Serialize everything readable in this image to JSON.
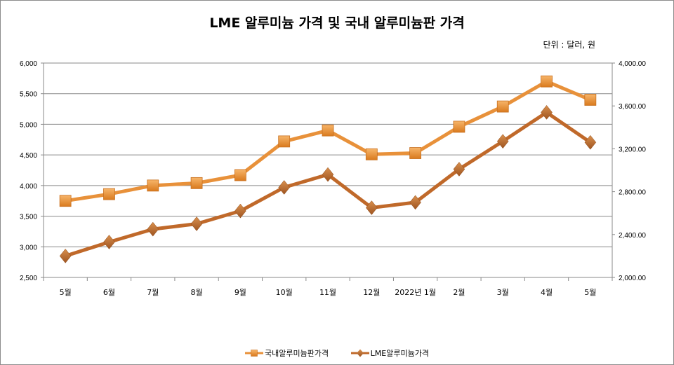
{
  "chart_data": {
    "type": "line",
    "title": "LME 알루미늄 가격 및 국내 알루미늄판 가격",
    "unit_note": "단위 : 달러, 원",
    "categories": [
      "5월",
      "6월",
      "7월",
      "8월",
      "9월",
      "10월",
      "11월",
      "12월",
      "2022년 1월",
      "2월",
      "3월",
      "4월",
      "5월"
    ],
    "left_axis": {
      "range": [
        2500,
        6000
      ],
      "ticks": [
        "2,500",
        "3,000",
        "3,500",
        "4,000",
        "4,500",
        "5,000",
        "5,500",
        "6,000"
      ],
      "tick_values": [
        2500,
        3000,
        3500,
        4000,
        4500,
        5000,
        5500,
        6000
      ]
    },
    "right_axis": {
      "range": [
        2000,
        4000
      ],
      "ticks": [
        "2,000.00",
        "2,400.00",
        "2,800.00",
        "3,200.00",
        "3,600.00",
        "4,000.00"
      ],
      "tick_values": [
        2000,
        2400,
        2800,
        3200,
        3600,
        4000
      ]
    },
    "grid": true,
    "legend_position": "bottom",
    "series": [
      {
        "name": "국내알루미늄판가격",
        "axis": "left",
        "marker": "square",
        "color": "#E8913A",
        "values": [
          3750,
          3860,
          4000,
          4040,
          4170,
          4720,
          4900,
          4510,
          4530,
          4960,
          5290,
          5700,
          5400
        ]
      },
      {
        "name": "LME알루미늄가격",
        "axis": "right",
        "marker": "diamond",
        "color": "#C0692A",
        "values": [
          2200,
          2330,
          2450,
          2500,
          2620,
          2840,
          2960,
          2650,
          2700,
          3010,
          3270,
          3540,
          3260
        ]
      }
    ]
  }
}
